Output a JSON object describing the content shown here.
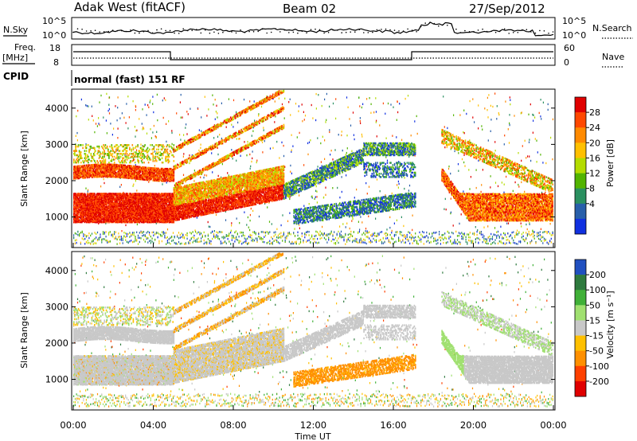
{
  "header": {
    "radar": "Adak West (fitACF)",
    "beam": "Beam 02",
    "date": "27/Sep/2012"
  },
  "strips": {
    "nsky_label": "N.Sky",
    "nsearch_label": "N.Search",
    "freq_label": "Freq.",
    "freq_unit": "[MHz]",
    "nave_label": "Nave",
    "cpid_label": "CPID",
    "cpid_text": "normal (fast) 151 RF",
    "noise_ticks_left": [
      "10^5",
      "10^0"
    ],
    "noise_ticks_right": [
      "10^5",
      "10^0"
    ],
    "freq_ticks": [
      "18",
      "8"
    ],
    "nave_ticks": [
      "60",
      "0"
    ]
  },
  "chart_data": [
    {
      "type": "heatmap",
      "panel": "power",
      "ylabel": "Slant Range [km]",
      "yticks": [
        "4000",
        "3000",
        "2000",
        "1000"
      ],
      "ylim": [
        200,
        4500
      ],
      "xlim": [
        "00:00",
        "24:00"
      ],
      "colorbar_label": "Power [dB]",
      "colorbar_ticks": [
        "28",
        "24",
        "20",
        "16",
        "12",
        "8",
        "4"
      ],
      "colors": [
        "#e00000",
        "#ff4800",
        "#ff8a00",
        "#ffc000",
        "#b4dc00",
        "#52b400",
        "#2a9060",
        "#285faa",
        "#1030e0"
      ]
    },
    {
      "type": "heatmap",
      "panel": "velocity",
      "ylabel": "Slant Range [km]",
      "yticks": [
        "4000",
        "3000",
        "2000",
        "1000"
      ],
      "ylim": [
        200,
        4500
      ],
      "xlim": [
        "00:00",
        "24:00"
      ],
      "xticks": [
        "00:00",
        "04:00",
        "08:00",
        "12:00",
        "16:00",
        "20:00",
        "00:00"
      ],
      "xlabel": "Time UT",
      "colorbar_label": "Velocity [m s⁻¹]",
      "colorbar_ticks": [
        "200",
        "100",
        "50",
        "15",
        "-15",
        "-50",
        "-100",
        "-200"
      ],
      "colors": [
        "#2050c0",
        "#2e7a3e",
        "#40b038",
        "#a0e070",
        "#c8c8c8",
        "#ffc000",
        "#ff9000",
        "#ff4000",
        "#e00000"
      ]
    }
  ]
}
